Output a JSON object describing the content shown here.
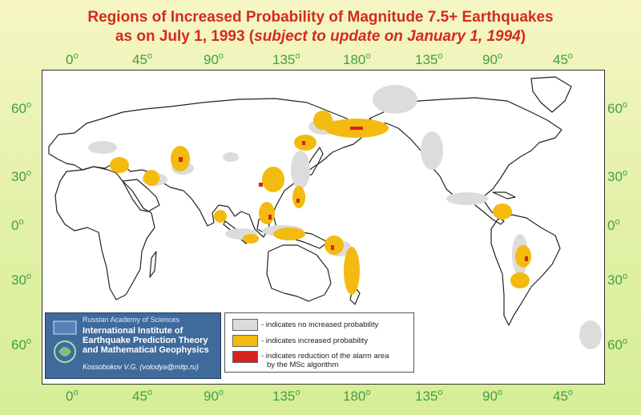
{
  "title": {
    "line1": "Regions of Increased Probability of Magnitude 7.5+ Earthquakes",
    "line2_prefix": "as on July 1, 1993 (",
    "line2_italic": "subject to update on January 1, 1994",
    "line2_suffix": ")"
  },
  "axes": {
    "top_labels": [
      "0",
      "45",
      "90",
      "135",
      "180",
      "135",
      "90",
      "45"
    ],
    "bottom_labels": [
      "0",
      "45",
      "90",
      "135",
      "180",
      "135",
      "90",
      "45"
    ],
    "left_labels": [
      "60",
      "30",
      "0",
      "30",
      "60"
    ],
    "right_labels": [
      "60",
      "30",
      "0",
      "30",
      "60"
    ],
    "degree_symbol": "o"
  },
  "logo": {
    "org": "Russian Academy of Sciences",
    "line1": "International Institute of",
    "line2": "Earthquake Prediction Theory",
    "line3": "and Mathematical Geophysics",
    "credit": "Kossobokov V.G. (volodya@mitp.ru)"
  },
  "legend": {
    "items": [
      {
        "color": "#dcdcdc",
        "text": "- indicates no increased probability"
      },
      {
        "color": "#f3bb10",
        "text": "- indicates increased probability"
      },
      {
        "color": "#d72020",
        "text": "- indicates reduction of the alarm area",
        "text2": "by the MSc algorithm"
      }
    ]
  },
  "colors": {
    "no_increase": "#dcdcdc",
    "increased": "#f3bb10",
    "reduction": "#d72020",
    "title": "#d52a20",
    "axis_labels": "#40a040"
  }
}
